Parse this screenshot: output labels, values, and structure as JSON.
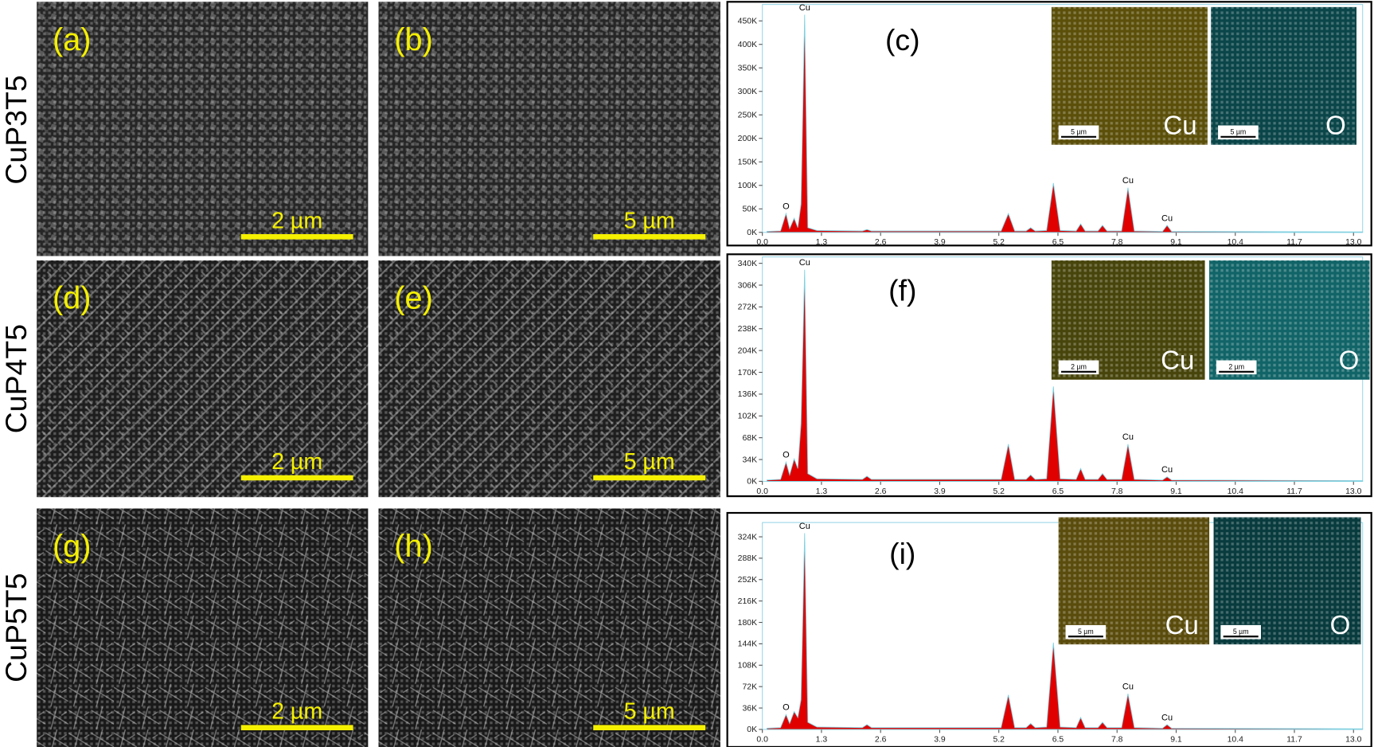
{
  "figure": {
    "rows": [
      "CuP3T5",
      "CuP4T5",
      "CuP5T5"
    ],
    "sem_panels": [
      {
        "label": "(a)",
        "scale": "2 µm"
      },
      {
        "label": "(b)",
        "scale": "5 µm"
      },
      {
        "label": "(d)",
        "scale": "2 µm"
      },
      {
        "label": "(e)",
        "scale": "5 µm"
      },
      {
        "label": "(g)",
        "scale": "2 µm"
      },
      {
        "label": "(h)",
        "scale": "5 µm"
      }
    ]
  },
  "chart_data": [
    {
      "type": "area",
      "title": "(c)",
      "x": [
        0.1,
        0.4,
        0.52,
        0.6,
        0.7,
        0.78,
        0.85,
        0.93,
        1.0,
        1.2,
        2.2,
        2.3,
        2.4,
        5.25,
        5.41,
        5.55,
        5.8,
        5.9,
        6.0,
        6.25,
        6.4,
        6.55,
        6.9,
        7.0,
        7.1,
        7.38,
        7.48,
        7.58,
        7.9,
        8.04,
        8.18,
        8.8,
        8.9,
        9.0,
        13.2
      ],
      "series": [
        {
          "color": "#e00000",
          "values": [
            2000,
            3000,
            40000,
            8000,
            30000,
            10000,
            60000,
            463000,
            10000,
            4000,
            3000,
            6000,
            3000,
            3000,
            40000,
            3000,
            3000,
            10000,
            3000,
            4000,
            105000,
            4000,
            3000,
            18000,
            3000,
            3000,
            15000,
            3000,
            3000,
            95000,
            3000,
            2000,
            15000,
            2000,
            1000
          ]
        }
      ],
      "xlim": [
        0,
        13.2
      ],
      "xticks": [
        {
          "value": 0,
          "label": "0.0"
        },
        1.3,
        2.6,
        3.9,
        5.2,
        6.5,
        7.8,
        9.1,
        10.4,
        11.7,
        {
          "value": 13,
          "label": "13.0"
        }
      ],
      "ylim": [
        0,
        485000
      ],
      "yticks": [
        {
          "value": 0,
          "label": "0K"
        },
        {
          "value": 50000,
          "label": "50K"
        },
        {
          "value": 100000,
          "label": "100K"
        },
        {
          "value": 150000,
          "label": "150K"
        },
        {
          "value": 200000,
          "label": "200K"
        },
        {
          "value": 250000,
          "label": "250K"
        },
        {
          "value": 300000,
          "label": "300K"
        },
        {
          "value": 350000,
          "label": "350K"
        },
        {
          "value": 400000,
          "label": "400K"
        },
        {
          "value": 450000,
          "label": "450K"
        }
      ],
      "annotations": [
        {
          "text": "O",
          "x": 0.52
        },
        {
          "text": "Cu",
          "x": 0.93
        },
        {
          "text": "Cu",
          "x": 8.04
        },
        {
          "text": "Cu",
          "x": 8.9
        }
      ],
      "insets": [
        {
          "element": "Cu",
          "scale": "5 µm",
          "color": "#8c7a10"
        },
        {
          "element": "O",
          "scale": "5 µm",
          "color": "#0f6a70"
        }
      ]
    },
    {
      "type": "area",
      "title": "(f)",
      "x": [
        0.1,
        0.4,
        0.52,
        0.6,
        0.7,
        0.78,
        0.85,
        0.93,
        1.0,
        1.2,
        2.2,
        2.3,
        2.4,
        5.25,
        5.41,
        5.55,
        5.8,
        5.9,
        6.0,
        6.25,
        6.4,
        6.55,
        6.9,
        7.0,
        7.1,
        7.38,
        7.48,
        7.58,
        7.9,
        8.04,
        8.18,
        8.8,
        8.9,
        9.0,
        13.2
      ],
      "series": [
        {
          "color": "#e00000",
          "values": [
            2000,
            3000,
            30000,
            10000,
            35000,
            20000,
            90000,
            330000,
            12000,
            4000,
            3000,
            8000,
            3000,
            3000,
            58000,
            3000,
            3000,
            10000,
            3000,
            4000,
            148000,
            4000,
            3000,
            20000,
            3000,
            3000,
            12000,
            3000,
            3000,
            58000,
            3000,
            2000,
            7000,
            2000,
            1000
          ]
        }
      ],
      "xlim": [
        0,
        13.2
      ],
      "xticks": [
        {
          "value": 0,
          "label": "0.0"
        },
        1.3,
        2.6,
        3.9,
        5.2,
        6.5,
        7.8,
        9.1,
        10.4,
        11.7,
        {
          "value": 13,
          "label": "13.0"
        }
      ],
      "ylim": [
        0,
        350000
      ],
      "yticks": [
        {
          "value": 0,
          "label": "0K"
        },
        {
          "value": 34000,
          "label": "34K"
        },
        {
          "value": 68000,
          "label": "68K"
        },
        {
          "value": 102000,
          "label": "102K"
        },
        {
          "value": 136000,
          "label": "136K"
        },
        {
          "value": 170000,
          "label": "170K"
        },
        {
          "value": 204000,
          "label": "204K"
        },
        {
          "value": 238000,
          "label": "238K"
        },
        {
          "value": 272000,
          "label": "272K"
        },
        {
          "value": 306000,
          "label": "306K"
        },
        {
          "value": 340000,
          "label": "340K"
        }
      ],
      "annotations": [
        {
          "text": "O",
          "x": 0.52
        },
        {
          "text": "Cu",
          "x": 0.93
        },
        {
          "text": "Cu",
          "x": 8.04
        },
        {
          "text": "Cu",
          "x": 8.9
        }
      ],
      "insets": [
        {
          "element": "Cu",
          "scale": "2 µm",
          "color": "#6e6a12"
        },
        {
          "element": "O",
          "scale": "2 µm",
          "color": "#1a9a9e"
        }
      ]
    },
    {
      "type": "area",
      "title": "(i)",
      "x": [
        0.1,
        0.4,
        0.52,
        0.6,
        0.7,
        0.78,
        0.85,
        0.93,
        1.0,
        1.2,
        2.2,
        2.3,
        2.4,
        5.25,
        5.41,
        5.55,
        5.8,
        5.9,
        6.0,
        6.25,
        6.4,
        6.55,
        6.9,
        7.0,
        7.1,
        7.38,
        7.48,
        7.58,
        7.9,
        8.04,
        8.18,
        8.8,
        8.9,
        9.0,
        13.2
      ],
      "series": [
        {
          "color": "#e00000",
          "values": [
            2000,
            3000,
            25000,
            10000,
            30000,
            20000,
            50000,
            330000,
            12000,
            4000,
            3000,
            8000,
            3000,
            3000,
            58000,
            3000,
            3000,
            10000,
            3000,
            4000,
            146000,
            4000,
            3000,
            20000,
            3000,
            3000,
            12000,
            3000,
            3000,
            60000,
            3000,
            2000,
            8000,
            2000,
            1000
          ]
        }
      ],
      "xlim": [
        0,
        13.2
      ],
      "xticks": [
        {
          "value": 0,
          "label": "0.0"
        },
        1.3,
        2.6,
        3.9,
        5.2,
        6.5,
        7.8,
        9.1,
        10.4,
        11.7,
        {
          "value": 13,
          "label": "13.0"
        }
      ],
      "ylim": [
        0,
        348000
      ],
      "yticks": [
        {
          "value": 0,
          "label": "0K"
        },
        {
          "value": 36000,
          "label": "36K"
        },
        {
          "value": 72000,
          "label": "72K"
        },
        {
          "value": 108000,
          "label": "108K"
        },
        {
          "value": 144000,
          "label": "144K"
        },
        {
          "value": 180000,
          "label": "180K"
        },
        {
          "value": 216000,
          "label": "216K"
        },
        {
          "value": 252000,
          "label": "252K"
        },
        {
          "value": 288000,
          "label": "288K"
        },
        {
          "value": 324000,
          "label": "324K"
        }
      ],
      "annotations": [
        {
          "text": "O",
          "x": 0.52
        },
        {
          "text": "Cu",
          "x": 0.93
        },
        {
          "text": "Cu",
          "x": 8.04
        },
        {
          "text": "Cu",
          "x": 8.9
        }
      ],
      "insets": [
        {
          "element": "Cu",
          "scale": "5 µm",
          "color": "#8a7412"
        },
        {
          "element": "O",
          "scale": "5 µm",
          "color": "#0d5a5e"
        }
      ]
    }
  ]
}
